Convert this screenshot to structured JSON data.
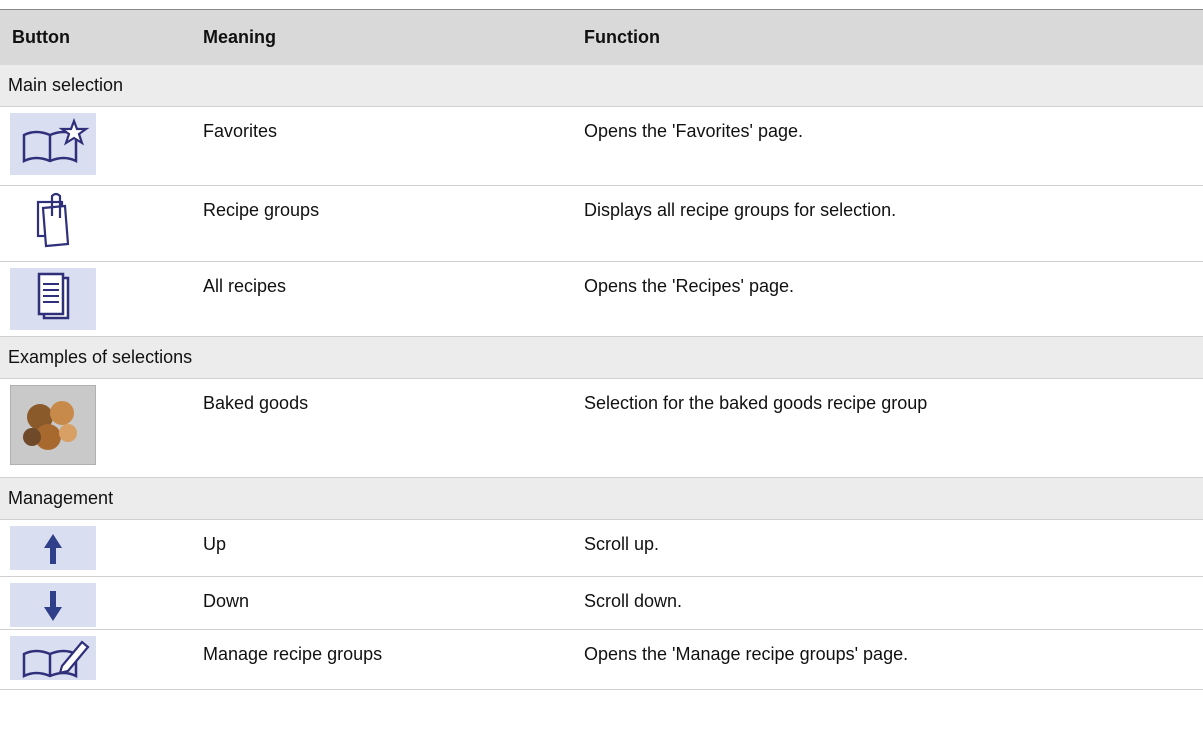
{
  "table": {
    "headers": [
      "Button",
      "Meaning",
      "Function"
    ],
    "sections": [
      {
        "title": "Main selection",
        "rows": [
          {
            "meaning": "Favorites",
            "function": "Opens the 'Favorites' page."
          },
          {
            "meaning": "Recipe groups",
            "function": "Displays all recipe groups for selection."
          },
          {
            "meaning": "All recipes",
            "function": "Opens the 'Recipes' page."
          }
        ]
      },
      {
        "title": "Examples of selections",
        "rows": [
          {
            "meaning": "Baked goods",
            "function": "Selection for the baked goods recipe group"
          }
        ]
      },
      {
        "title": "Management",
        "rows": [
          {
            "meaning": "Up",
            "function": "Scroll up."
          },
          {
            "meaning": "Down",
            "function": "Scroll down."
          },
          {
            "meaning": "Manage recipe groups",
            "function": "Opens the 'Manage recipe groups' page."
          }
        ]
      }
    ]
  }
}
